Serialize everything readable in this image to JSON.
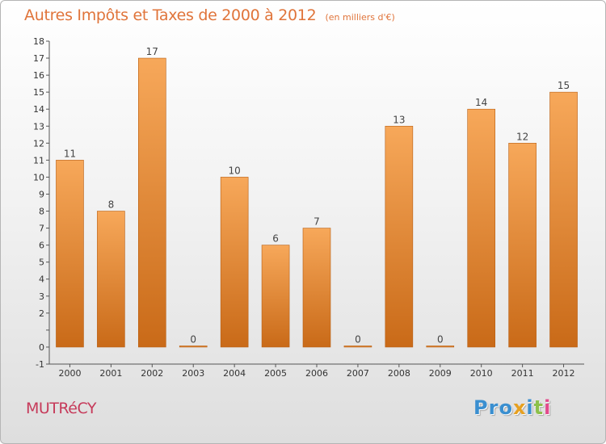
{
  "chart_data": {
    "type": "bar",
    "title": "Autres Impôts et Taxes de 2000 à 2012",
    "unit_label": "(en milliers d'€)",
    "categories": [
      "2000",
      "2001",
      "2002",
      "2003",
      "2004",
      "2005",
      "2006",
      "2007",
      "2008",
      "2009",
      "2010",
      "2011",
      "2012"
    ],
    "values": [
      11,
      8,
      17,
      0,
      10,
      6,
      7,
      0,
      13,
      0,
      14,
      12,
      15
    ],
    "value_labels": [
      "11",
      "8",
      "17",
      "0",
      "10",
      "6",
      "7",
      "0",
      "13",
      "0",
      "14",
      "12",
      "15"
    ],
    "ylim": [
      -1,
      18
    ],
    "yticks": [
      -1,
      0,
      1,
      2,
      3,
      4,
      5,
      6,
      7,
      8,
      9,
      10,
      11,
      12,
      13,
      14,
      15,
      16,
      17,
      18
    ],
    "ytick_labels": [
      "-1",
      "0",
      "",
      "2",
      "3",
      "4",
      "5",
      "6",
      "7",
      "8",
      "9",
      "10",
      "11",
      "12",
      "13",
      "14",
      "15",
      "16",
      "17",
      "18"
    ],
    "xlabel": "",
    "ylabel": "",
    "grid": false,
    "colors": {
      "bar_light": "#f7a85a",
      "bar_dark": "#c96a18",
      "title": "#e0743a",
      "commune": "#c63a5a"
    }
  },
  "commune": "MUTRéCY",
  "logo": {
    "letters": [
      {
        "char": "P",
        "color": "#3a8fd0"
      },
      {
        "char": "r",
        "color": "#3a8fd0"
      },
      {
        "char": "o",
        "color": "#3a8fd0"
      },
      {
        "char": "x",
        "color": "#e6a020"
      },
      {
        "char": "i",
        "color": "#3a8fd0"
      },
      {
        "char": "t",
        "color": "#8cc04a"
      },
      {
        "char": "i",
        "color": "#e24a8c"
      }
    ]
  }
}
